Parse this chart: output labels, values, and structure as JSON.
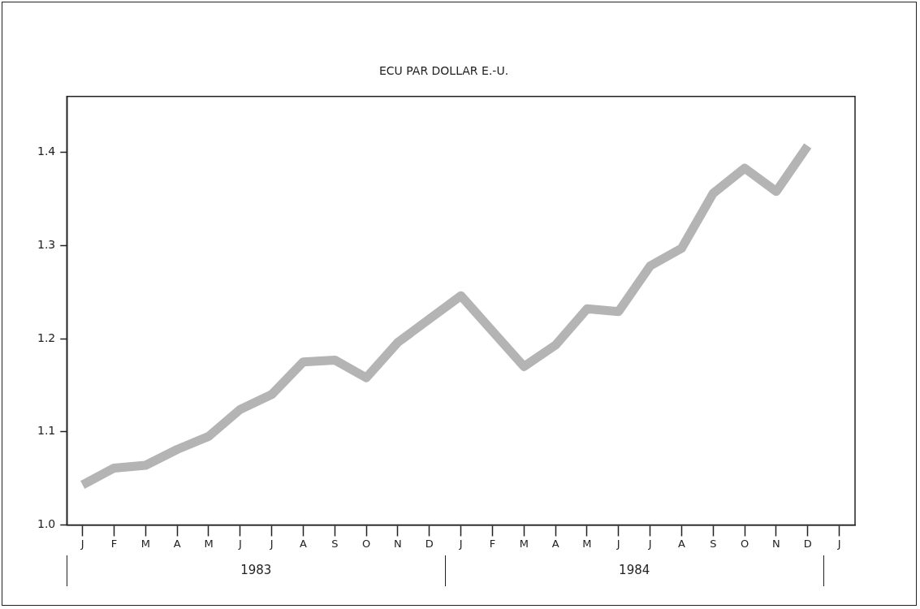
{
  "chart_data": {
    "type": "line",
    "title": "ECU PAR DOLLAR E.-U.",
    "categories": [
      "J",
      "F",
      "M",
      "A",
      "M",
      "J",
      "J",
      "A",
      "S",
      "O",
      "N",
      "D",
      "J",
      "F",
      "M",
      "A",
      "M",
      "J",
      "J",
      "A",
      "S",
      "O",
      "N",
      "D",
      "J"
    ],
    "values": [
      1.043,
      1.061,
      1.064,
      1.081,
      1.095,
      1.124,
      1.14,
      1.175,
      1.177,
      1.158,
      1.196,
      1.221,
      1.246,
      1.208,
      1.17,
      1.193,
      1.232,
      1.229,
      1.278,
      1.297,
      1.356,
      1.383,
      1.358,
      1.407,
      null
    ],
    "color": "#b4b4b4",
    "ylim": [
      1.0,
      1.46
    ],
    "yticks": [
      {
        "value": 1.0,
        "label": "1.0"
      },
      {
        "value": 1.1,
        "label": "1.1"
      },
      {
        "value": 1.2,
        "label": "1.2"
      },
      {
        "value": 1.3,
        "label": "1.3"
      },
      {
        "value": 1.4,
        "label": "1.4"
      }
    ],
    "grid": false,
    "legend": false,
    "marker": "none",
    "line_style": "solid",
    "annotations": [
      "1983",
      "1984"
    ]
  }
}
